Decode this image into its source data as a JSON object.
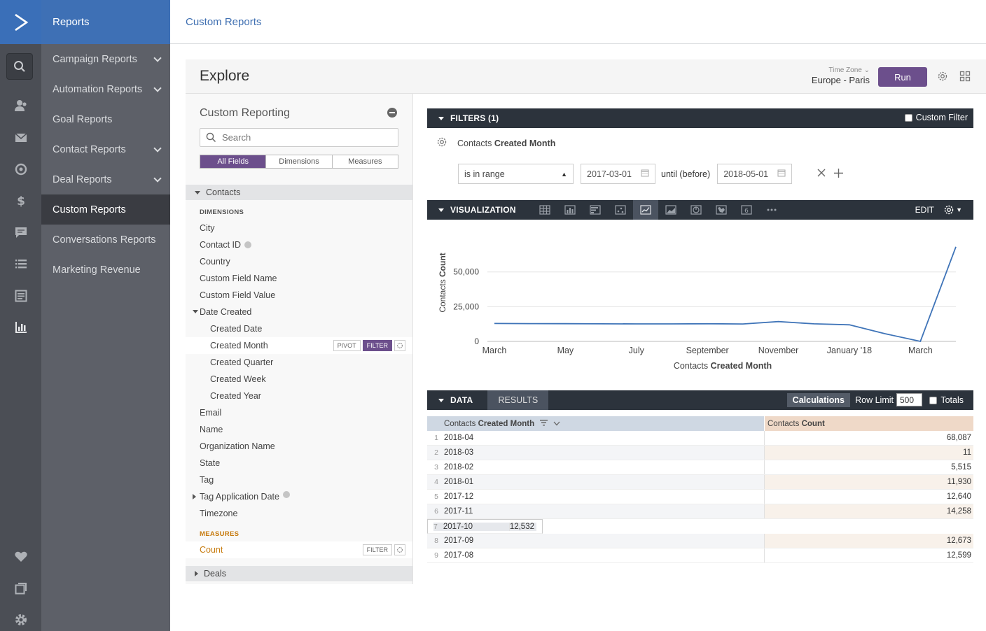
{
  "app": {
    "logo_icon": "activecampaign-chevron-icon",
    "brand_color": "#3e70b5",
    "accent_color": "#6c4f8c"
  },
  "rail": [
    {
      "name": "search-icon"
    },
    {
      "name": "contacts-icon"
    },
    {
      "name": "campaigns-icon"
    },
    {
      "name": "automations-icon"
    },
    {
      "name": "deals-icon"
    },
    {
      "name": "conversations-icon"
    },
    {
      "name": "lists-icon"
    },
    {
      "name": "forms-icon"
    },
    {
      "name": "reports-icon"
    },
    {
      "name": "favorites-icon"
    },
    {
      "name": "pages-icon"
    },
    {
      "name": "settings-icon"
    }
  ],
  "nav": {
    "title": "Reports",
    "items": [
      {
        "label": "Campaign Reports",
        "expandable": true
      },
      {
        "label": "Automation Reports",
        "expandable": true
      },
      {
        "label": "Goal Reports",
        "expandable": false
      },
      {
        "label": "Contact Reports",
        "expandable": true
      },
      {
        "label": "Deal Reports",
        "expandable": true
      },
      {
        "label": "Custom Reports",
        "expandable": false,
        "active": true
      },
      {
        "label": "Conversations Reports",
        "expandable": false
      },
      {
        "label": "Marketing Revenue",
        "expandable": false
      }
    ]
  },
  "header": {
    "title": "Custom Reports"
  },
  "explore": {
    "title": "Explore",
    "timezone_label": "Time Zone",
    "timezone_value": "Europe - Paris",
    "run_label": "Run"
  },
  "picker": {
    "title": "Custom Reporting",
    "search_placeholder": "Search",
    "tabs": [
      "All Fields",
      "Dimensions",
      "Measures"
    ],
    "group_contacts": "Contacts",
    "dimensions_heading": "DIMENSIONS",
    "fields": {
      "city": "City",
      "contact_id": "Contact ID",
      "country": "Country",
      "custom_field_name": "Custom Field Name",
      "custom_field_value": "Custom Field Value",
      "date_created": "Date Created",
      "created_date": "Created Date",
      "created_month": "Created Month",
      "created_quarter": "Created Quarter",
      "created_week": "Created Week",
      "created_year": "Created Year",
      "email": "Email",
      "name": "Name",
      "organization_name": "Organization Name",
      "state": "State",
      "tag": "Tag",
      "tag_application_date": "Tag Application Date",
      "timezone": "Timezone"
    },
    "measures_heading": "MEASURES",
    "count": "Count",
    "pivot": "PIVOT",
    "filter": "FILTER",
    "group_deals": "Deals"
  },
  "filters": {
    "bar_label": "FILTERS (1)",
    "custom_filter_label": "Custom Filter",
    "field_prefix": "Contacts",
    "field_name": "Created Month",
    "operator": "is in range",
    "start_date": "2017-03-01",
    "until_label": "until (before)",
    "end_date": "2018-05-01"
  },
  "visualization": {
    "bar_label": "VISUALIZATION",
    "edit_label": "EDIT",
    "types": [
      "table-icon",
      "column-icon",
      "bar-icon",
      "scatter-icon",
      "line-icon",
      "area-icon",
      "pie-icon",
      "map-icon",
      "single-value-icon",
      "more-icon"
    ],
    "active_type": "line-icon"
  },
  "chart_data": {
    "type": "line",
    "x": [
      "2017-03",
      "2017-04",
      "2017-05",
      "2017-06",
      "2017-07",
      "2017-08",
      "2017-09",
      "2017-10",
      "2017-11",
      "2017-12",
      "2018-01",
      "2018-02",
      "2018-03",
      "2018-04"
    ],
    "tick_labels": [
      "March",
      "May",
      "July",
      "September",
      "November",
      "January '18",
      "March"
    ],
    "series": [
      {
        "values": [
          12900,
          12800,
          12750,
          12650,
          12600,
          12599,
          12673,
          12532,
          14258,
          12640,
          11930,
          5515,
          11,
          68087
        ],
        "color": "#3f74b8"
      }
    ],
    "ylabel_prefix": "Contacts",
    "ylabel_bold": "Count",
    "xlabel_prefix": "Contacts",
    "xlabel_bold": "Created Month",
    "yticks": [
      "0",
      "25,000",
      "50,000"
    ],
    "ylim": [
      0,
      70000
    ],
    "grid": true
  },
  "data": {
    "bar_label": "DATA",
    "results_label": "RESULTS",
    "calculations_label": "Calculations",
    "row_limit_label": "Row Limit",
    "row_limit_value": "500",
    "totals_label": "Totals",
    "col1_prefix": "Contacts",
    "col1_bold": "Created Month",
    "col2_prefix": "Contacts",
    "col2_bold": "Count",
    "rows": [
      {
        "n": "1",
        "month": "2018-04",
        "count": "68,087"
      },
      {
        "n": "2",
        "month": "2018-03",
        "count": "11"
      },
      {
        "n": "3",
        "month": "2018-02",
        "count": "5,515"
      },
      {
        "n": "4",
        "month": "2018-01",
        "count": "11,930"
      },
      {
        "n": "5",
        "month": "2017-12",
        "count": "12,640"
      },
      {
        "n": "6",
        "month": "2017-11",
        "count": "14,258"
      },
      {
        "n": "7",
        "month": "2017-10",
        "count": "12,532"
      },
      {
        "n": "8",
        "month": "2017-09",
        "count": "12,673"
      },
      {
        "n": "9",
        "month": "2017-08",
        "count": "12,599"
      }
    ]
  }
}
